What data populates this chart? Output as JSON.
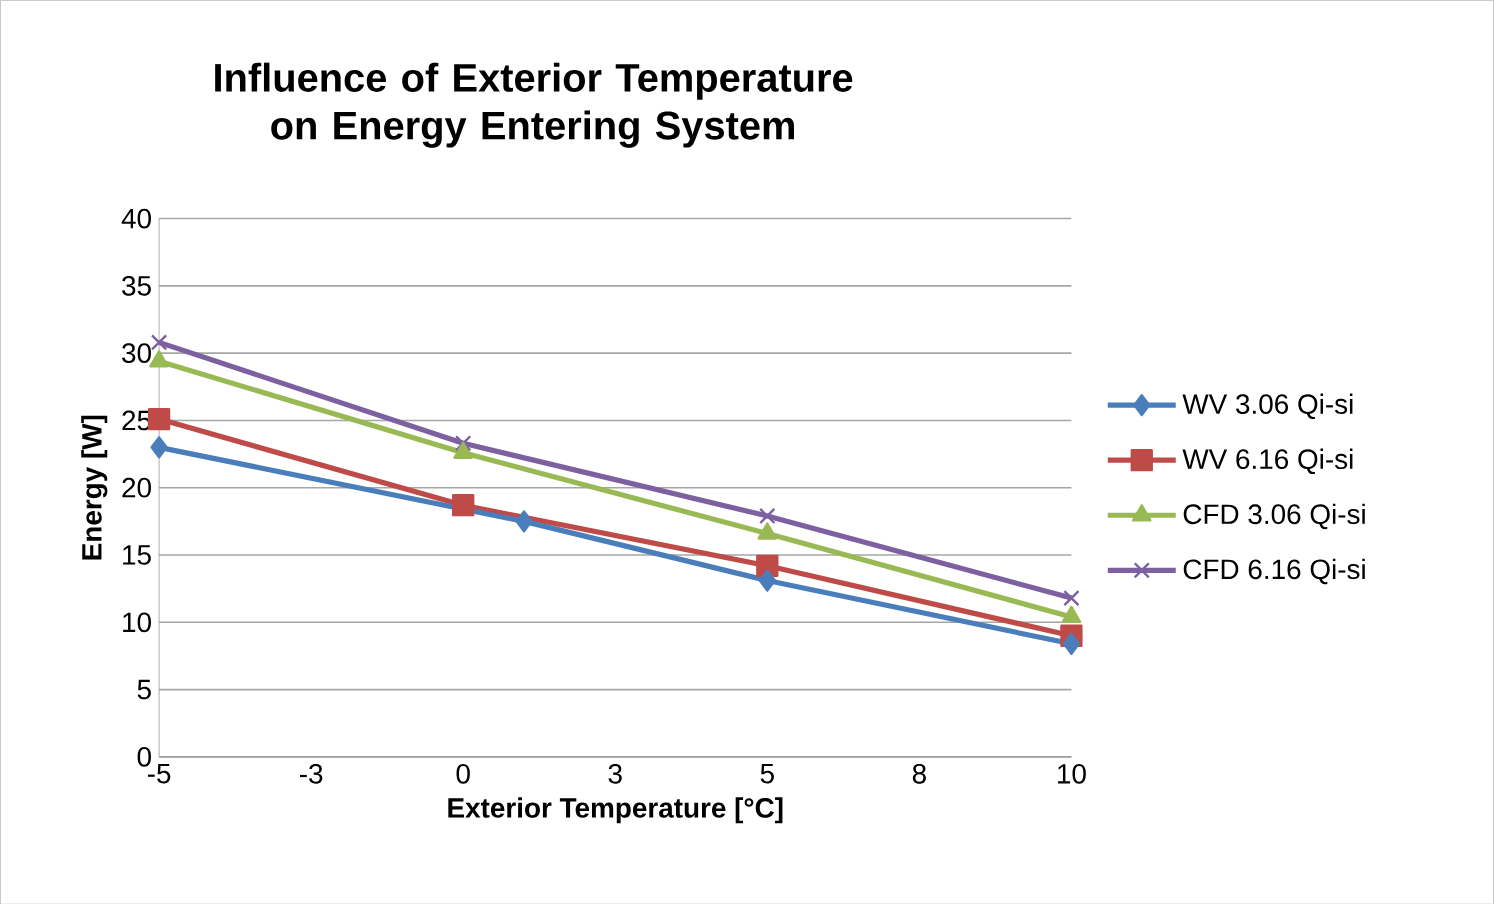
{
  "chart_data": {
    "type": "line",
    "title": "Influence of Exterior Temperature on Energy Entering System",
    "xlabel": "Exterior Temperature [°C]",
    "ylabel": "Energy [W]",
    "xlim": [
      -5,
      10
    ],
    "xticks": [
      -5,
      {
        "value": -2.5,
        "label": "-3"
      },
      0,
      {
        "value": 2.5,
        "label": "3"
      },
      5,
      {
        "value": 7.5,
        "label": "8"
      },
      10
    ],
    "ylim": [
      0,
      40
    ],
    "yticks": [
      0,
      5,
      10,
      15,
      20,
      25,
      30,
      35,
      40
    ],
    "grid": "y",
    "legend": "right",
    "series": [
      {
        "name": "WV 3.06 Qi-si",
        "color": "#4a7ebb",
        "marker": "diamond",
        "x": [
          -5,
          1,
          5,
          10
        ],
        "values": [
          23.0,
          17.5,
          13.1,
          8.4
        ]
      },
      {
        "name": "WV 6.16 Qi-si",
        "color": "#be4b48",
        "marker": "square",
        "x": [
          -5,
          0,
          5,
          10
        ],
        "values": [
          25.1,
          18.7,
          14.2,
          9.0
        ]
      },
      {
        "name": "CFD 3.06 Qi-si",
        "color": "#98b954",
        "marker": "triangle",
        "x": [
          -5,
          0,
          5,
          10
        ],
        "values": [
          29.4,
          22.6,
          16.6,
          10.4
        ]
      },
      {
        "name": "CFD 6.16 Qi-si",
        "color": "#7d60a0",
        "marker": "cross",
        "x": [
          -5,
          0,
          5,
          10
        ],
        "values": [
          30.8,
          23.3,
          17.9,
          11.8
        ]
      }
    ]
  }
}
